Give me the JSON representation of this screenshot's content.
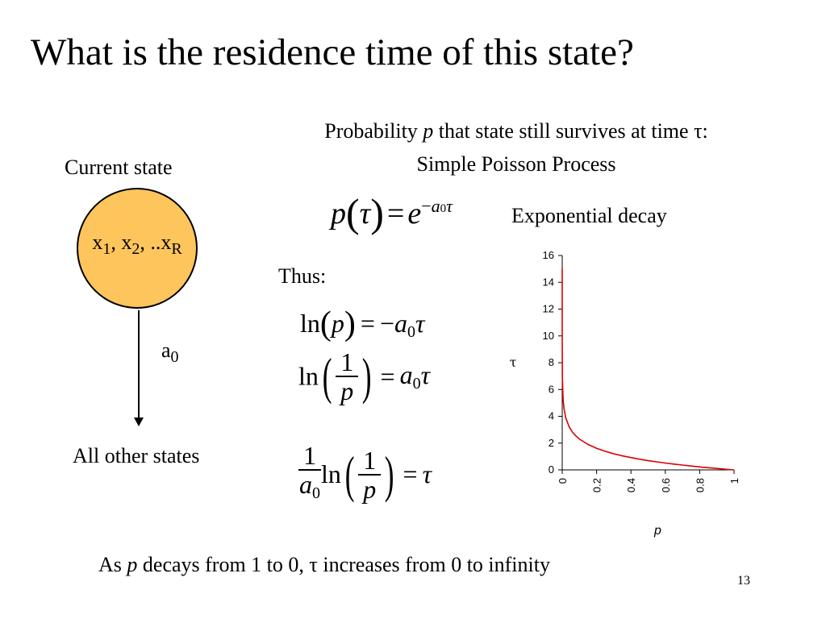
{
  "title": "What is the residence time of this state?",
  "intro": {
    "line1_prefix": "Probability ",
    "line1_var": "p",
    "line1_mid": " that state still survives at time ",
    "line1_tau": "τ",
    "line1_suffix": ":",
    "line2": "Simple Poisson Process"
  },
  "diagram": {
    "current_state_label": "Current state",
    "circle_x": "x",
    "circle_sub1": "1",
    "circle_sep1": ", x",
    "circle_sub2": "2",
    "circle_sep2": ", ..x",
    "circle_subR": "R",
    "arrow_label": "a",
    "arrow_label_sub": "0",
    "other_states_label": "All other states"
  },
  "equations": {
    "main_p": "p",
    "main_tau": "τ",
    "main_eq": "=",
    "main_e": "e",
    "main_exp_minus": "−",
    "main_exp_a": "a",
    "main_exp_sub": "0",
    "main_exp_tau": "τ",
    "main_label": "Exponential decay",
    "thus": "Thus:",
    "ln": "ln",
    "one": "1",
    "p": "p",
    "a": "a",
    "zero": "0",
    "tau": "τ",
    "eq": "=",
    "minus": "−"
  },
  "conclusion": {
    "prefix": "As ",
    "var": "p",
    "mid": " decays from 1 to 0, ",
    "tau": "τ",
    "suffix": " increases from 0 to infinity"
  },
  "page_number": "13",
  "chart_data": {
    "type": "line",
    "xlabel": "p",
    "ylabel": "τ",
    "xlim": [
      0,
      1
    ],
    "ylim": [
      0,
      16
    ],
    "x_ticks": [
      "0",
      "0.2",
      "0.4",
      "0.6",
      "0.8",
      "1"
    ],
    "y_ticks": [
      "0",
      "2",
      "4",
      "6",
      "8",
      "10",
      "12",
      "14",
      "16"
    ],
    "grid": false,
    "series": [
      {
        "color": "#dd0000",
        "x": [
          3e-07,
          1e-05,
          0.0001,
          0.001,
          0.005,
          0.01,
          0.02,
          0.04,
          0.06,
          0.08,
          0.1,
          0.15,
          0.2,
          0.25,
          0.3,
          0.35,
          0.4,
          0.45,
          0.5,
          0.55,
          0.6,
          0.65,
          0.7,
          0.75,
          0.8,
          0.85,
          0.9,
          0.95,
          1.0
        ],
        "y": [
          15.0,
          11.51,
          9.21,
          6.91,
          5.3,
          4.61,
          3.91,
          3.22,
          2.81,
          2.53,
          2.3,
          1.9,
          1.61,
          1.39,
          1.2,
          1.05,
          0.92,
          0.8,
          0.69,
          0.6,
          0.51,
          0.43,
          0.36,
          0.29,
          0.22,
          0.16,
          0.11,
          0.05,
          0.0
        ]
      }
    ]
  }
}
